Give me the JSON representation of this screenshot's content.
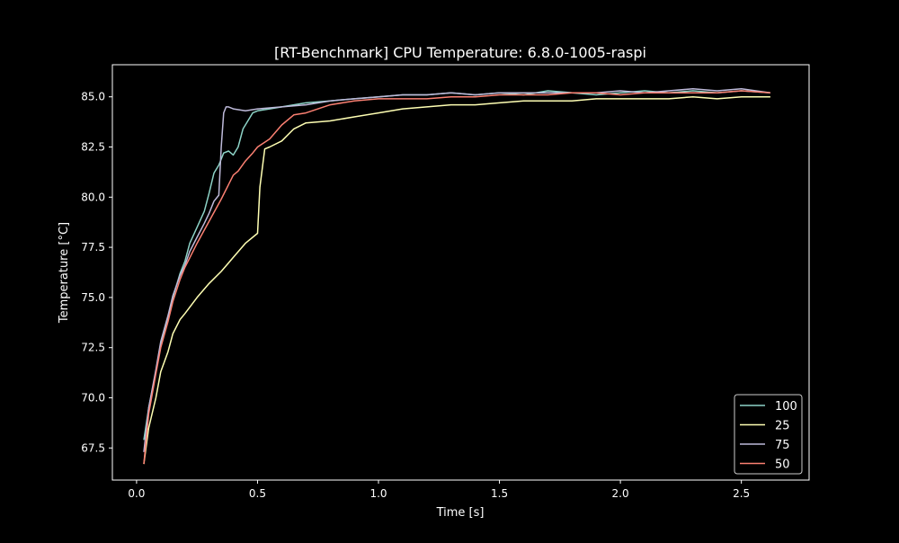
{
  "chart_data": {
    "type": "line",
    "title": "[RT-Benchmark] CPU Temperature: 6.8.0-1005-raspi",
    "xlabel": "Time [s]",
    "ylabel": "Temperature [°C]",
    "xlim": [
      -0.1,
      2.78
    ],
    "ylim": [
      65.9,
      86.6
    ],
    "xticks": [
      0.0,
      0.5,
      1.0,
      1.5,
      2.0,
      2.5
    ],
    "xtick_labels": [
      "0.0",
      "0.5",
      "1.0",
      "1.5",
      "2.0",
      "2.5"
    ],
    "yticks": [
      67.5,
      70.0,
      72.5,
      75.0,
      77.5,
      80.0,
      82.5,
      85.0
    ],
    "ytick_labels": [
      "67.5",
      "70.0",
      "72.5",
      "75.0",
      "77.5",
      "80.0",
      "82.5",
      "85.0"
    ],
    "grid": false,
    "legend_position": "lower right",
    "background": "#000000",
    "series": [
      {
        "name": "100",
        "color": "#8dd3c7",
        "x": [
          0.03,
          0.05,
          0.08,
          0.1,
          0.13,
          0.15,
          0.18,
          0.2,
          0.22,
          0.25,
          0.28,
          0.3,
          0.32,
          0.34,
          0.36,
          0.38,
          0.4,
          0.42,
          0.44,
          0.46,
          0.48,
          0.5,
          0.55,
          0.6,
          0.7,
          0.8,
          0.9,
          1.0,
          1.1,
          1.2,
          1.3,
          1.4,
          1.5,
          1.6,
          1.7,
          1.8,
          1.9,
          2.0,
          2.1,
          2.2,
          2.3,
          2.4,
          2.5,
          2.62
        ],
        "y": [
          67.9,
          69.5,
          71.3,
          72.6,
          74.0,
          75.0,
          76.2,
          76.8,
          77.7,
          78.5,
          79.3,
          80.2,
          81.2,
          81.6,
          82.2,
          82.3,
          82.1,
          82.5,
          83.4,
          83.8,
          84.2,
          84.3,
          84.4,
          84.5,
          84.7,
          84.8,
          84.9,
          85.0,
          85.1,
          85.1,
          85.2,
          85.1,
          85.2,
          85.1,
          85.3,
          85.2,
          85.1,
          85.2,
          85.3,
          85.2,
          85.3,
          85.2,
          85.3,
          85.2
        ]
      },
      {
        "name": "25",
        "color": "#ffffb3",
        "x": [
          0.03,
          0.05,
          0.08,
          0.1,
          0.13,
          0.15,
          0.18,
          0.2,
          0.25,
          0.3,
          0.35,
          0.4,
          0.45,
          0.5,
          0.51,
          0.53,
          0.55,
          0.6,
          0.65,
          0.7,
          0.8,
          0.9,
          1.0,
          1.1,
          1.2,
          1.3,
          1.4,
          1.5,
          1.6,
          1.7,
          1.8,
          1.9,
          2.0,
          2.1,
          2.2,
          2.3,
          2.4,
          2.5,
          2.62
        ],
        "y": [
          66.7,
          68.5,
          70.0,
          71.3,
          72.3,
          73.2,
          73.9,
          74.2,
          75.0,
          75.7,
          76.3,
          77.0,
          77.7,
          78.2,
          80.5,
          82.4,
          82.5,
          82.8,
          83.4,
          83.7,
          83.8,
          84.0,
          84.2,
          84.4,
          84.5,
          84.6,
          84.6,
          84.7,
          84.8,
          84.8,
          84.8,
          84.9,
          84.9,
          84.9,
          84.9,
          85.0,
          84.9,
          85.0,
          85.0
        ]
      },
      {
        "name": "75",
        "color": "#bebada",
        "x": [
          0.03,
          0.05,
          0.08,
          0.1,
          0.13,
          0.15,
          0.18,
          0.2,
          0.22,
          0.25,
          0.28,
          0.3,
          0.32,
          0.34,
          0.35,
          0.36,
          0.37,
          0.38,
          0.4,
          0.45,
          0.5,
          0.6,
          0.7,
          0.8,
          0.9,
          1.0,
          1.1,
          1.2,
          1.3,
          1.4,
          1.5,
          1.6,
          1.7,
          1.8,
          1.9,
          2.0,
          2.1,
          2.2,
          2.3,
          2.4,
          2.5,
          2.62
        ],
        "y": [
          67.3,
          69.5,
          71.4,
          72.8,
          74.1,
          75.1,
          76.1,
          76.6,
          77.3,
          78.0,
          78.7,
          79.2,
          79.8,
          80.1,
          82.5,
          84.2,
          84.5,
          84.5,
          84.4,
          84.3,
          84.4,
          84.5,
          84.6,
          84.8,
          84.9,
          85.0,
          85.1,
          85.1,
          85.2,
          85.1,
          85.2,
          85.2,
          85.2,
          85.2,
          85.2,
          85.3,
          85.2,
          85.3,
          85.4,
          85.3,
          85.4,
          85.2
        ]
      },
      {
        "name": "50",
        "color": "#fb8072",
        "x": [
          0.03,
          0.05,
          0.08,
          0.1,
          0.13,
          0.15,
          0.18,
          0.2,
          0.25,
          0.3,
          0.35,
          0.4,
          0.42,
          0.45,
          0.48,
          0.5,
          0.55,
          0.6,
          0.65,
          0.7,
          0.8,
          0.9,
          1.0,
          1.1,
          1.2,
          1.3,
          1.4,
          1.5,
          1.6,
          1.7,
          1.8,
          1.9,
          2.0,
          2.1,
          2.2,
          2.3,
          2.4,
          2.5,
          2.62
        ],
        "y": [
          66.7,
          69.2,
          71.2,
          72.5,
          73.8,
          74.8,
          75.9,
          76.5,
          77.7,
          78.8,
          79.9,
          81.1,
          81.3,
          81.8,
          82.2,
          82.5,
          82.9,
          83.6,
          84.1,
          84.2,
          84.6,
          84.8,
          84.9,
          84.9,
          84.9,
          85.0,
          85.0,
          85.1,
          85.1,
          85.1,
          85.2,
          85.2,
          85.1,
          85.2,
          85.2,
          85.2,
          85.2,
          85.3,
          85.2
        ]
      }
    ]
  }
}
